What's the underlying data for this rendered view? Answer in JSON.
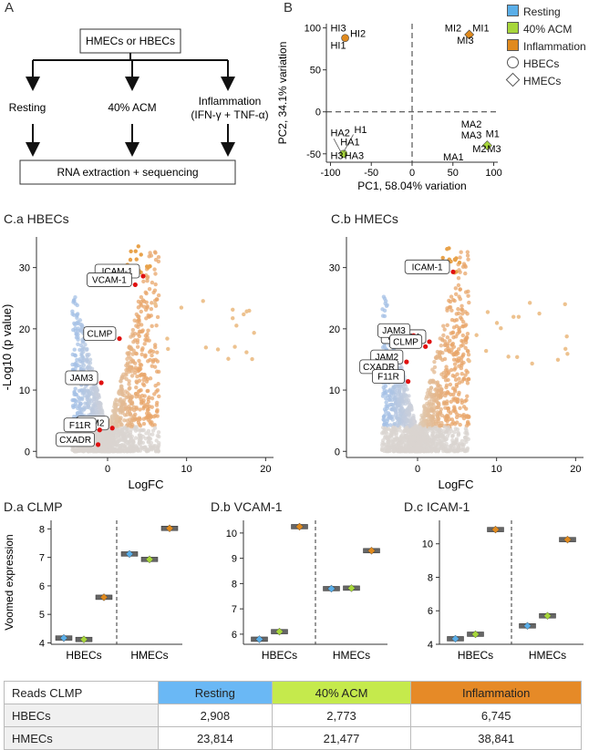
{
  "panelA": {
    "letter": "A",
    "top_box": "HMECs or HBECs",
    "branches": [
      "Resting",
      "40% ACM",
      "Inflammation"
    ],
    "inflammation_sub": "(IFN-γ + TNF-α)",
    "bottom_box": "RNA extraction + sequencing"
  },
  "panelB": {
    "letter": "B",
    "legend": {
      "colors": [
        {
          "label": "Resting",
          "color": "#5aaee8"
        },
        {
          "label": "40% ACM",
          "color": "#a7d63b"
        },
        {
          "label": "Inflammation",
          "color": "#e08a1e"
        }
      ],
      "shapes": [
        {
          "label": "HBECs",
          "shape": "circle"
        },
        {
          "label": "HMECs",
          "shape": "diamond"
        }
      ]
    }
  },
  "panelC": {
    "a_title": "C.a HBECs",
    "b_title": "C.b HMECs"
  },
  "panelD": {
    "a_title": "D.a CLMP",
    "b_title": "D.b VCAM-1",
    "c_title": "D.c ICAM-1"
  },
  "chart_data": [
    {
      "id": "pca",
      "type": "scatter",
      "title": "",
      "xlabel": "PC1, 58.04% variation",
      "ylabel": "PC2, 34.1% variation",
      "xlim": [
        -105,
        105
      ],
      "ylim": [
        -60,
        105
      ],
      "xticks": [
        -100,
        -50,
        0,
        50,
        100
      ],
      "yticks": [
        -50,
        0,
        50,
        100
      ],
      "points": [
        {
          "x": -82,
          "y": 88,
          "group": "Inflammation",
          "cell": "HBECs"
        },
        {
          "x": 70,
          "y": 92,
          "group": "Inflammation",
          "cell": "HMECs"
        },
        {
          "x": -84,
          "y": -50,
          "group": "40% ACM",
          "cell": "HBECs"
        },
        {
          "x": 92,
          "y": -40,
          "group": "40% ACM",
          "cell": "HMECs"
        }
      ],
      "labels": [
        {
          "text": "HI3",
          "x": -100,
          "y": 96
        },
        {
          "text": "HI2",
          "x": -76,
          "y": 89
        },
        {
          "text": "HI1",
          "x": -100,
          "y": 75
        },
        {
          "text": "MI2",
          "x": 40,
          "y": 96
        },
        {
          "text": "MI1",
          "x": 74,
          "y": 96
        },
        {
          "text": "MI3",
          "x": 55,
          "y": 81
        },
        {
          "text": "H1",
          "x": -71,
          "y": -25
        },
        {
          "text": "HA2",
          "x": -100,
          "y": -29
        },
        {
          "text": "HA1",
          "x": -88,
          "y": -40
        },
        {
          "text": "H3",
          "x": -100,
          "y": -56
        },
        {
          "text": "HA3",
          "x": -83,
          "y": -56
        },
        {
          "text": "MA2",
          "x": 60,
          "y": -19
        },
        {
          "text": "MA3",
          "x": 60,
          "y": -32
        },
        {
          "text": "M1",
          "x": 90,
          "y": -30
        },
        {
          "text": "M2",
          "x": 74,
          "y": -48
        },
        {
          "text": "M3",
          "x": 92,
          "y": -48
        },
        {
          "text": "MA1",
          "x": 38,
          "y": -58
        }
      ],
      "dashed_lines": {
        "x": 0,
        "y": 0
      }
    },
    {
      "id": "volcano-hbecs",
      "type": "scatter",
      "xlabel": "LogFC",
      "ylabel": "-Log10 (p value)",
      "xlim": [
        -9,
        21
      ],
      "ylim": [
        -1,
        35
      ],
      "xticks": [
        0,
        10,
        20
      ],
      "yticks": [
        0,
        10,
        20,
        30
      ],
      "genes": [
        {
          "label": "ICAM-1",
          "x": 4.5,
          "y": 28.6
        },
        {
          "label": "VCAM-1",
          "x": 3.5,
          "y": 27.2
        },
        {
          "label": "CLMP",
          "x": 1.5,
          "y": 18.4
        },
        {
          "label": "JAM3",
          "x": -0.8,
          "y": 11.2
        },
        {
          "label": "JAM2",
          "x": 0.6,
          "y": 3.8
        },
        {
          "label": "F11R",
          "x": -1,
          "y": 3.5
        },
        {
          "label": "CXADR",
          "x": -1.2,
          "y": 1.1
        }
      ]
    },
    {
      "id": "volcano-hmecs",
      "type": "scatter",
      "xlabel": "LogFC",
      "ylabel": "",
      "xlim": [
        -9,
        21
      ],
      "ylim": [
        -1,
        35
      ],
      "xticks": [
        0,
        10,
        20
      ],
      "yticks": [
        0,
        10,
        20,
        30
      ],
      "genes": [
        {
          "label": "ICAM-1",
          "x": 4.5,
          "y": 29.3
        },
        {
          "label": "VCAM-1",
          "x": 1.5,
          "y": 17.9
        },
        {
          "label": "JAM3",
          "x": -0.5,
          "y": 18.9
        },
        {
          "label": "CLMP",
          "x": 1,
          "y": 17.1
        },
        {
          "label": "JAM2",
          "x": -1.4,
          "y": 14.6
        },
        {
          "label": "CXADR",
          "x": -2,
          "y": 13
        },
        {
          "label": "F11R",
          "x": -1.2,
          "y": 11.4
        }
      ]
    },
    {
      "id": "clmp",
      "type": "box",
      "ylabel": "Voomed expression",
      "categories": [
        "HBECs",
        "HMECs"
      ],
      "ylim": [
        3.95,
        8.3
      ],
      "yticks": [
        4,
        5,
        6,
        7,
        8
      ],
      "series": [
        {
          "name": "Resting",
          "values": [
            4.17,
            7.12
          ]
        },
        {
          "name": "40% ACM",
          "values": [
            4.12,
            6.93
          ]
        },
        {
          "name": "Inflammation",
          "values": [
            5.6,
            8.02
          ]
        }
      ]
    },
    {
      "id": "vcam1",
      "type": "box",
      "ylabel": "",
      "categories": [
        "HBECs",
        "HMECs"
      ],
      "ylim": [
        5.6,
        10.5
      ],
      "yticks": [
        6,
        7,
        8,
        9,
        10
      ],
      "series": [
        {
          "name": "Resting",
          "values": [
            5.8,
            7.8
          ]
        },
        {
          "name": "40% ACM",
          "values": [
            6.1,
            7.82
          ]
        },
        {
          "name": "Inflammation",
          "values": [
            10.25,
            9.3
          ]
        }
      ]
    },
    {
      "id": "icam1",
      "type": "box",
      "ylabel": "",
      "categories": [
        "HBECs",
        "HMECs"
      ],
      "ylim": [
        4,
        11.4
      ],
      "yticks": [
        4,
        6,
        8,
        10
      ],
      "series": [
        {
          "name": "Resting",
          "values": [
            4.33,
            5.1
          ]
        },
        {
          "name": "40% ACM",
          "values": [
            4.6,
            5.7
          ]
        },
        {
          "name": "Inflammation",
          "values": [
            10.85,
            10.25
          ]
        }
      ]
    }
  ],
  "table": {
    "corner": "Reads CLMP",
    "headers": [
      {
        "label": "Resting",
        "color": "#6ab8f5"
      },
      {
        "label": "40% ACM",
        "color": "#c5ea4c"
      },
      {
        "label": "Inflammation",
        "color": "#e68a27"
      }
    ],
    "rows": [
      {
        "label": "HBECs",
        "values": [
          "2,908",
          "2,773",
          "6,745"
        ]
      },
      {
        "label": "HMECs",
        "values": [
          "23,814",
          "21,477",
          "38,841"
        ]
      }
    ]
  }
}
